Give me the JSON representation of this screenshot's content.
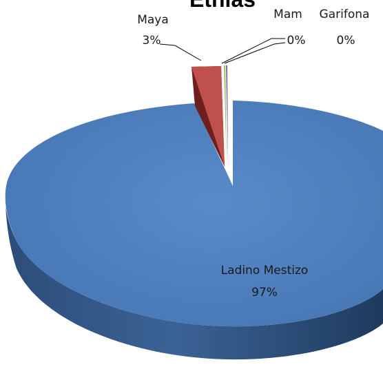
{
  "chart_data": {
    "type": "pie",
    "title": "Etnias",
    "categories": [
      "Ladino Mestizo",
      "Maya",
      "Mam",
      "Garifona"
    ],
    "values": [
      97,
      3,
      0,
      0
    ],
    "value_labels": [
      "97%",
      "3%",
      "0%",
      "0%"
    ],
    "colors": [
      "#4f81bd",
      "#c0504d",
      "#9bbb59",
      "#8064a2"
    ],
    "style": "3d-exploded",
    "legend": "none"
  }
}
